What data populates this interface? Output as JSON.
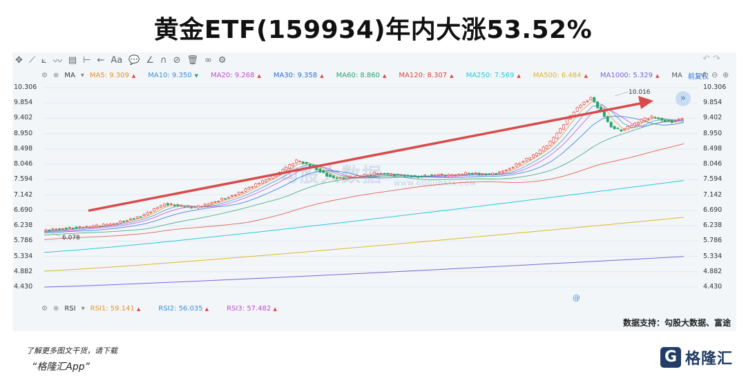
{
  "title": "黄金ETF(159934)年内大涨53.52%",
  "toolbar": {
    "icons": [
      "crosshair-icon",
      "line-icon",
      "ray-icon",
      "wave-icon",
      "channel-icon",
      "measure-icon",
      "arrow-left-icon",
      "text-icon",
      "comment-icon",
      "angle-icon",
      "magnet-icon",
      "eye-off-icon",
      "trash-icon",
      "link-icon",
      "settings-icon"
    ],
    "text_tool": "Aa"
  },
  "legend": {
    "indicator": "MA",
    "fq_label": "前复权",
    "items": [
      {
        "label": "MA5:",
        "value": "9.309",
        "dir": "up",
        "color": "#e8912b"
      },
      {
        "label": "MA10:",
        "value": "9.350",
        "dir": "down",
        "color": "#3b8fd8"
      },
      {
        "label": "MA20:",
        "value": "9.268",
        "dir": "up",
        "color": "#c44ad4"
      },
      {
        "label": "MA30:",
        "value": "9.358",
        "dir": "up",
        "color": "#2b6fd8"
      },
      {
        "label": "MA60:",
        "value": "8.860",
        "dir": "up",
        "color": "#2aa36b"
      },
      {
        "label": "MA120:",
        "value": "8.307",
        "dir": "up",
        "color": "#e0433d"
      },
      {
        "label": "MA250:",
        "value": "7.569",
        "dir": "up",
        "color": "#27c8d8"
      },
      {
        "label": "MA500:",
        "value": "6.484",
        "dir": "up",
        "color": "#e0b52b"
      },
      {
        "label": "MA1000:",
        "value": "5.329",
        "dir": "up",
        "color": "#7a63d8"
      }
    ]
  },
  "rsi": {
    "indicator": "RSI",
    "items": [
      {
        "label": "RSI1:",
        "value": "59.141",
        "color": "#e8912b"
      },
      {
        "label": "RSI2:",
        "value": "56.035",
        "color": "#3b8fd8"
      },
      {
        "label": "RSI3:",
        "value": "57.482",
        "color": "#c44ad4"
      }
    ]
  },
  "source": "数据支持：勾股大数据、富途",
  "footer": {
    "line1": "了解更多图文干货，请下载",
    "line2": "“格隆汇App”"
  },
  "brand": {
    "mark": "G",
    "name": "格隆汇"
  },
  "watermark": {
    "text": "勾股大数据",
    "url": "WWW.GOGUDATA.COM"
  },
  "chart_data": {
    "type": "candlestick",
    "y_ticks": [
      "10.306",
      "9.854",
      "9.402",
      "8.950",
      "8.498",
      "8.046",
      "7.594",
      "7.142",
      "6.690",
      "6.238",
      "5.786",
      "5.334",
      "4.882",
      "4.430"
    ],
    "ylim": [
      4.43,
      10.306
    ],
    "annotations": {
      "high": "10.016",
      "low": "6.078"
    },
    "price_path": [
      6.08,
      6.12,
      6.15,
      6.18,
      6.2,
      6.22,
      6.26,
      6.3,
      6.38,
      6.45,
      6.55,
      6.72,
      6.88,
      6.85,
      6.8,
      6.78,
      6.85,
      6.95,
      7.05,
      7.15,
      7.3,
      7.45,
      7.6,
      7.75,
      7.95,
      8.15,
      8.05,
      7.9,
      7.72,
      7.62,
      7.65,
      7.7,
      7.74,
      7.8,
      7.75,
      7.72,
      7.7,
      7.68,
      7.72,
      7.74,
      7.72,
      7.75,
      7.8,
      7.76,
      7.74,
      7.8,
      7.92,
      8.1,
      8.25,
      8.45,
      8.7,
      9.1,
      9.5,
      9.8,
      10.0,
      9.6,
      9.15,
      9.05,
      9.2,
      9.35,
      9.45,
      9.35,
      9.3,
      9.4
    ],
    "ma_lines": {
      "MA250": [
        5.45,
        7.569
      ],
      "MA500": [
        4.9,
        6.484
      ],
      "MA1000": [
        4.43,
        5.329
      ]
    },
    "trend_arrow": {
      "from": 6.68,
      "to": 9.92
    }
  }
}
